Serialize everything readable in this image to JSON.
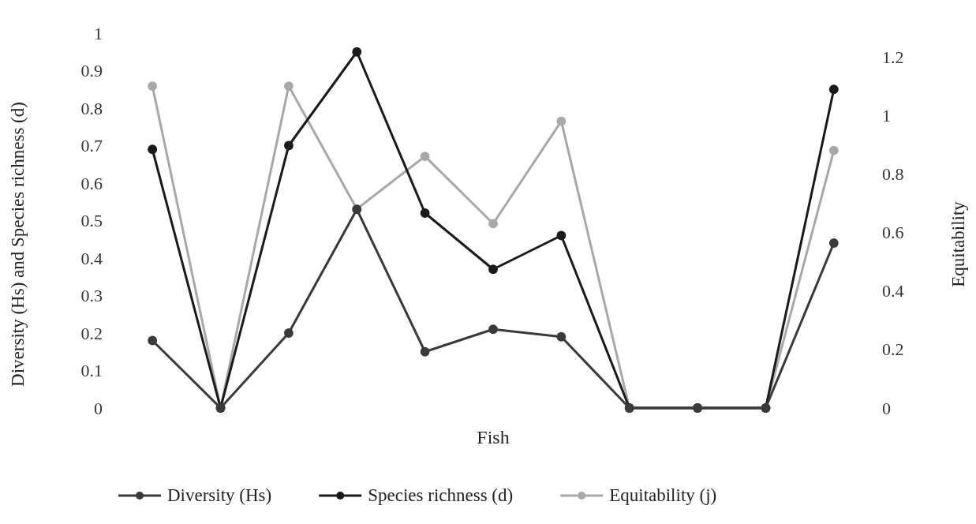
{
  "chart_data": {
    "type": "line",
    "xlabel": "Fish",
    "ylabel": "Diversity (Hs) and Species richness (d)",
    "y2label": "Equitability",
    "categories": [
      null,
      null,
      null,
      null,
      null,
      null,
      null,
      null,
      null,
      null,
      null
    ],
    "series": [
      {
        "name": "Diversity (Hs)",
        "color": "#3a3a3a",
        "values": [
          0.18,
          0,
          0.2,
          0.53,
          0.15,
          0.21,
          0.19,
          0,
          0,
          0,
          0.44
        ]
      },
      {
        "name": "Species richness (d)",
        "color": "#1a1a1a",
        "values": [
          0.69,
          0,
          0.7,
          0.95,
          0.52,
          0.37,
          0.46,
          0,
          0,
          0,
          0.85
        ]
      },
      {
        "name": "Equitability (j)",
        "color": "#a8a8a8",
        "axis": "y2",
        "values": [
          1.1,
          0,
          1.1,
          0.68,
          0.86,
          0.63,
          0.98,
          0,
          0,
          0,
          0.88
        ]
      }
    ],
    "ylim": [
      0,
      1
    ],
    "yticks": [
      0,
      0.1,
      0.2,
      0.3,
      0.4,
      0.5,
      0.6,
      0.7,
      0.8,
      0.9,
      1
    ],
    "y2lim": [
      0,
      1.2
    ],
    "y2ticks": [
      0,
      0.2,
      0.4,
      0.6,
      0.8,
      1,
      1.2
    ],
    "marker": "circle",
    "legend": "bottom",
    "grid": false
  }
}
